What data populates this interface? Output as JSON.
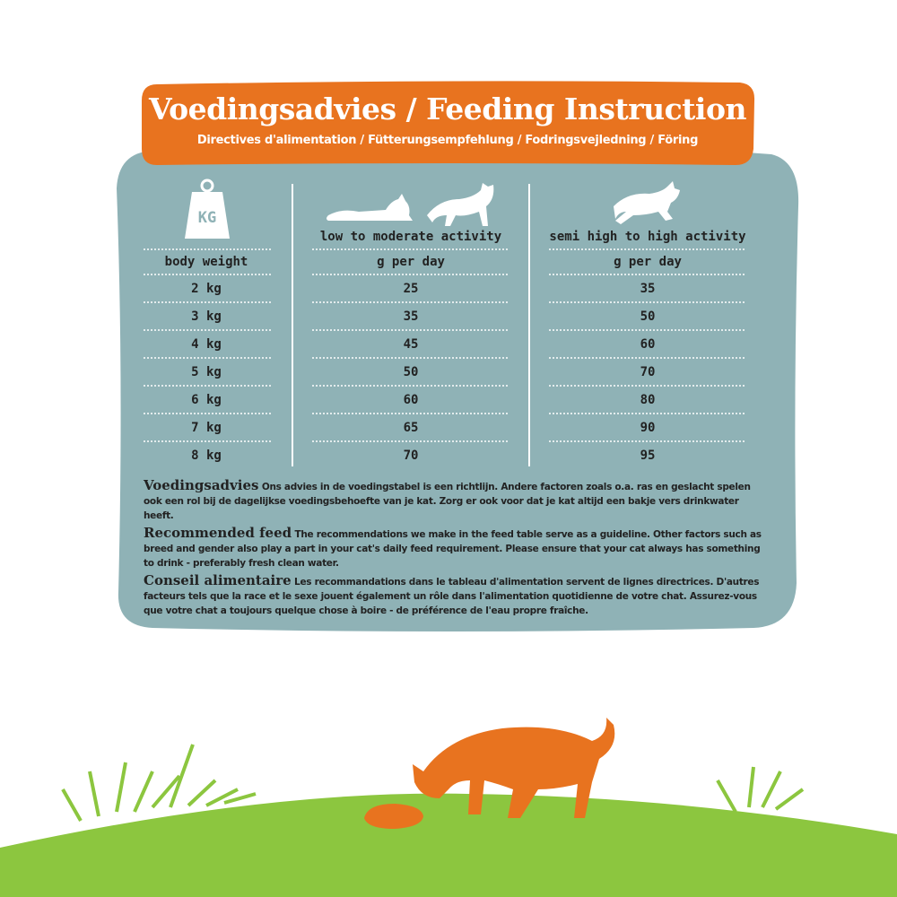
{
  "header": {
    "title": "Voedingsadvies / Feeding Instruction",
    "subtitle": "Directives d'alimentation / Fütterungsempfehlung / Fodringsvejledning / Föring"
  },
  "table": {
    "icon_label": "KG",
    "column_headers": [
      "low to moderate activity",
      "semi high to high activity"
    ],
    "subheaders": [
      "body weight",
      "g per day",
      "g per day"
    ],
    "rows": [
      [
        "2 kg",
        25,
        35
      ],
      [
        "3 kg",
        35,
        50
      ],
      [
        "4 kg",
        45,
        60
      ],
      [
        "5 kg",
        50,
        70
      ],
      [
        "6 kg",
        60,
        80
      ],
      [
        "7 kg",
        65,
        90
      ],
      [
        "8 kg",
        70,
        95
      ]
    ]
  },
  "notes": [
    {
      "heading": "Voedingsadvies",
      "text": "Ons advies in de voedingstabel is een richtlijn. Andere factoren zoals o.a. ras en geslacht spelen ook een rol bij de dagelijkse voedingsbehoefte van je kat. Zorg er ook voor dat je kat altijd een bakje vers drinkwater heeft."
    },
    {
      "heading": "Recommended feed",
      "text": "The recommendations we make in the feed table serve as a guideline. Other factors such as breed and gender also play a part in your cat's daily feed requirement. Please ensure that your cat always has something to drink - preferably fresh clean water."
    },
    {
      "heading": "Conseil alimentaire",
      "text": "Les recommandations dans le tableau d'alimentation servent de lignes directrices. D'autres facteurs tels que la race et le sexe jouent également un rôle dans l'alimentation quotidienne de votre chat. Assurez-vous que votre chat a toujours quelque chose à boire - de préférence de l'eau propre fraîche."
    }
  ]
}
